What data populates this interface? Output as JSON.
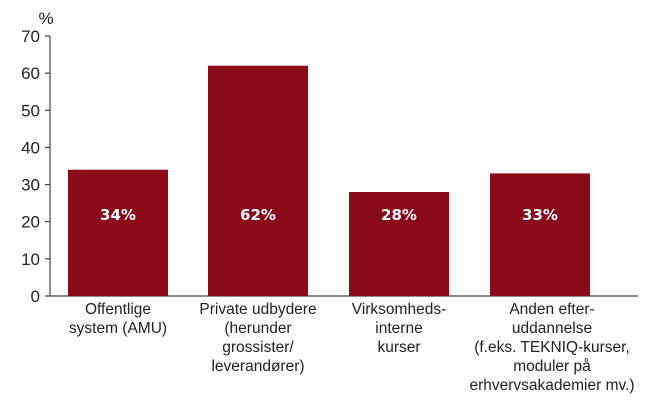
{
  "chart_data": {
    "type": "bar",
    "ylabel": "%",
    "ylim": [
      0,
      70
    ],
    "yticks": [
      0,
      10,
      20,
      30,
      40,
      50,
      60,
      70
    ],
    "categories": [
      [
        "Offentlige",
        "system (AMU)"
      ],
      [
        "Private udbydere",
        "(herunder",
        "grossister/",
        "leverandører)"
      ],
      [
        "Virksomheds-",
        "interne",
        "kurser"
      ],
      [
        "Anden efter-",
        "uddannelse",
        "(f.eks. TEKNIQ-kurser,",
        "moduler på",
        "erhvervsakademier mv.)"
      ]
    ],
    "values": [
      34,
      62,
      28,
      33
    ],
    "value_labels": [
      "34%",
      "62%",
      "28%",
      "33%"
    ],
    "bar_color": "#8b0a1a",
    "grid": false
  }
}
